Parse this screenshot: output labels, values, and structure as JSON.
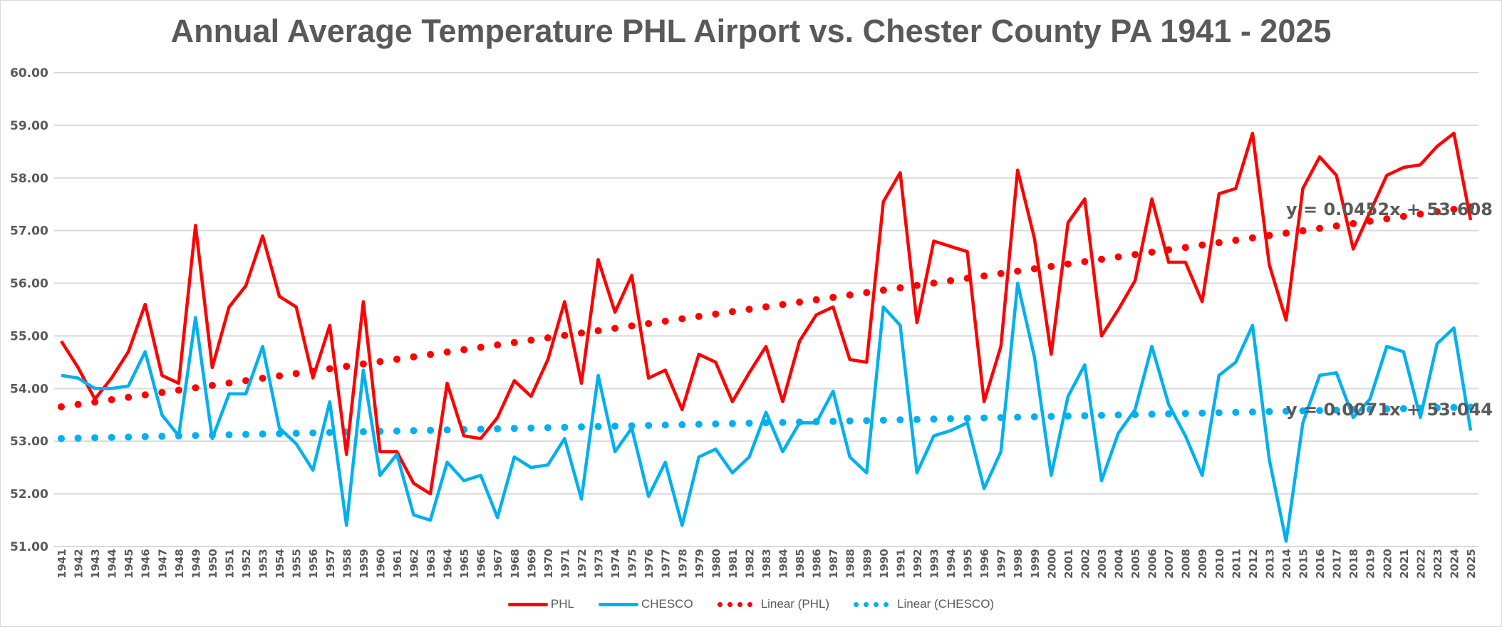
{
  "chart_data": {
    "type": "line",
    "title": "Annual Average Temperature PHL Airport vs. Chester County PA 1941 - 2025",
    "xlabel": "",
    "ylabel": "",
    "ylim": [
      51,
      60
    ],
    "yticks": [
      "51.00",
      "52.00",
      "53.00",
      "54.00",
      "55.00",
      "56.00",
      "57.00",
      "58.00",
      "59.00",
      "60.00"
    ],
    "grid": true,
    "legend_position": "bottom",
    "x": [
      1941,
      1942,
      1943,
      1944,
      1945,
      1946,
      1947,
      1948,
      1949,
      1950,
      1951,
      1952,
      1953,
      1954,
      1955,
      1956,
      1957,
      1958,
      1959,
      1960,
      1961,
      1962,
      1963,
      1964,
      1965,
      1966,
      1967,
      1968,
      1969,
      1970,
      1971,
      1972,
      1973,
      1974,
      1975,
      1976,
      1977,
      1978,
      1979,
      1980,
      1981,
      1982,
      1983,
      1984,
      1985,
      1986,
      1987,
      1988,
      1989,
      1990,
      1991,
      1992,
      1993,
      1994,
      1995,
      1996,
      1997,
      1998,
      1999,
      2000,
      2001,
      2002,
      2003,
      2004,
      2005,
      2006,
      2007,
      2008,
      2009,
      2010,
      2011,
      2012,
      2013,
      2014,
      2015,
      2016,
      2017,
      2018,
      2019,
      2020,
      2021,
      2022,
      2023,
      2024,
      2025
    ],
    "series": [
      {
        "name": "PHL",
        "color": "#ff0000",
        "style": "solid",
        "values": [
          54.9,
          54.4,
          53.8,
          54.2,
          54.7,
          55.6,
          54.25,
          54.1,
          57.1,
          54.4,
          55.55,
          55.95,
          56.9,
          55.75,
          55.55,
          54.2,
          55.2,
          52.75,
          55.65,
          52.8,
          52.8,
          52.2,
          52.0,
          54.1,
          53.1,
          53.05,
          53.45,
          54.15,
          53.85,
          54.55,
          55.65,
          54.1,
          56.45,
          55.45,
          56.15,
          54.2,
          54.35,
          53.6,
          54.65,
          54.5,
          53.75,
          54.3,
          54.8,
          53.75,
          54.9,
          55.4,
          55.55,
          54.55,
          54.5,
          57.55,
          58.1,
          55.25,
          56.8,
          56.7,
          56.6,
          53.75,
          54.8,
          58.15,
          56.85,
          54.65,
          57.15,
          57.6,
          55.0,
          55.5,
          56.05,
          57.6,
          56.4,
          56.4,
          55.65,
          57.7,
          57.8,
          58.85,
          56.35,
          55.3,
          57.8,
          58.4,
          58.05,
          56.65,
          57.35,
          58.05,
          58.2,
          58.25,
          58.6,
          58.85,
          57.2
        ]
      },
      {
        "name": "CHESCO",
        "color": "#00b0f0",
        "style": "solid",
        "values": [
          54.25,
          54.2,
          54.0,
          54.0,
          54.05,
          54.7,
          53.5,
          53.1,
          55.35,
          53.05,
          53.9,
          53.9,
          54.8,
          53.25,
          52.95,
          52.45,
          53.75,
          51.4,
          54.35,
          52.35,
          52.75,
          51.6,
          51.5,
          52.6,
          52.25,
          52.35,
          51.55,
          52.7,
          52.5,
          52.55,
          53.05,
          51.9,
          54.25,
          52.8,
          53.25,
          51.95,
          52.6,
          51.4,
          52.7,
          52.85,
          52.4,
          52.7,
          53.55,
          52.8,
          53.35,
          53.35,
          53.95,
          52.7,
          52.4,
          55.55,
          55.2,
          52.4,
          53.1,
          53.2,
          53.35,
          52.1,
          52.8,
          56.0,
          54.6,
          52.35,
          53.85,
          54.45,
          52.25,
          53.15,
          53.6,
          54.8,
          53.7,
          53.1,
          52.35,
          54.25,
          54.5,
          55.2,
          52.65,
          51.1,
          53.35,
          54.25,
          54.3,
          53.45,
          53.8,
          54.8,
          54.7,
          53.45,
          54.85,
          55.15,
          53.2
        ]
      },
      {
        "name": "Linear (PHL)",
        "color": "#ff0000",
        "style": "dotted",
        "trend": {
          "slope": 0.0452,
          "intercept": 53.608
        }
      },
      {
        "name": "Linear (CHESCO)",
        "color": "#00b0f0",
        "style": "dotted",
        "trend": {
          "slope": 0.0071,
          "intercept": 53.044
        }
      }
    ],
    "annotations": [
      {
        "text": "y = 0.0452x + 53.608",
        "series": "Linear (PHL)"
      },
      {
        "text": "y = 0.0071x + 53.044",
        "series": "Linear (CHESCO)"
      }
    ]
  },
  "legend": {
    "items": [
      {
        "label": "PHL",
        "color": "#ff0000",
        "kind": "line"
      },
      {
        "label": "CHESCO",
        "color": "#00b0f0",
        "kind": "line"
      },
      {
        "label": "Linear (PHL)",
        "color": "#ff0000",
        "kind": "dots"
      },
      {
        "label": "Linear (CHESCO)",
        "color": "#00b0f0",
        "kind": "dots"
      }
    ]
  }
}
